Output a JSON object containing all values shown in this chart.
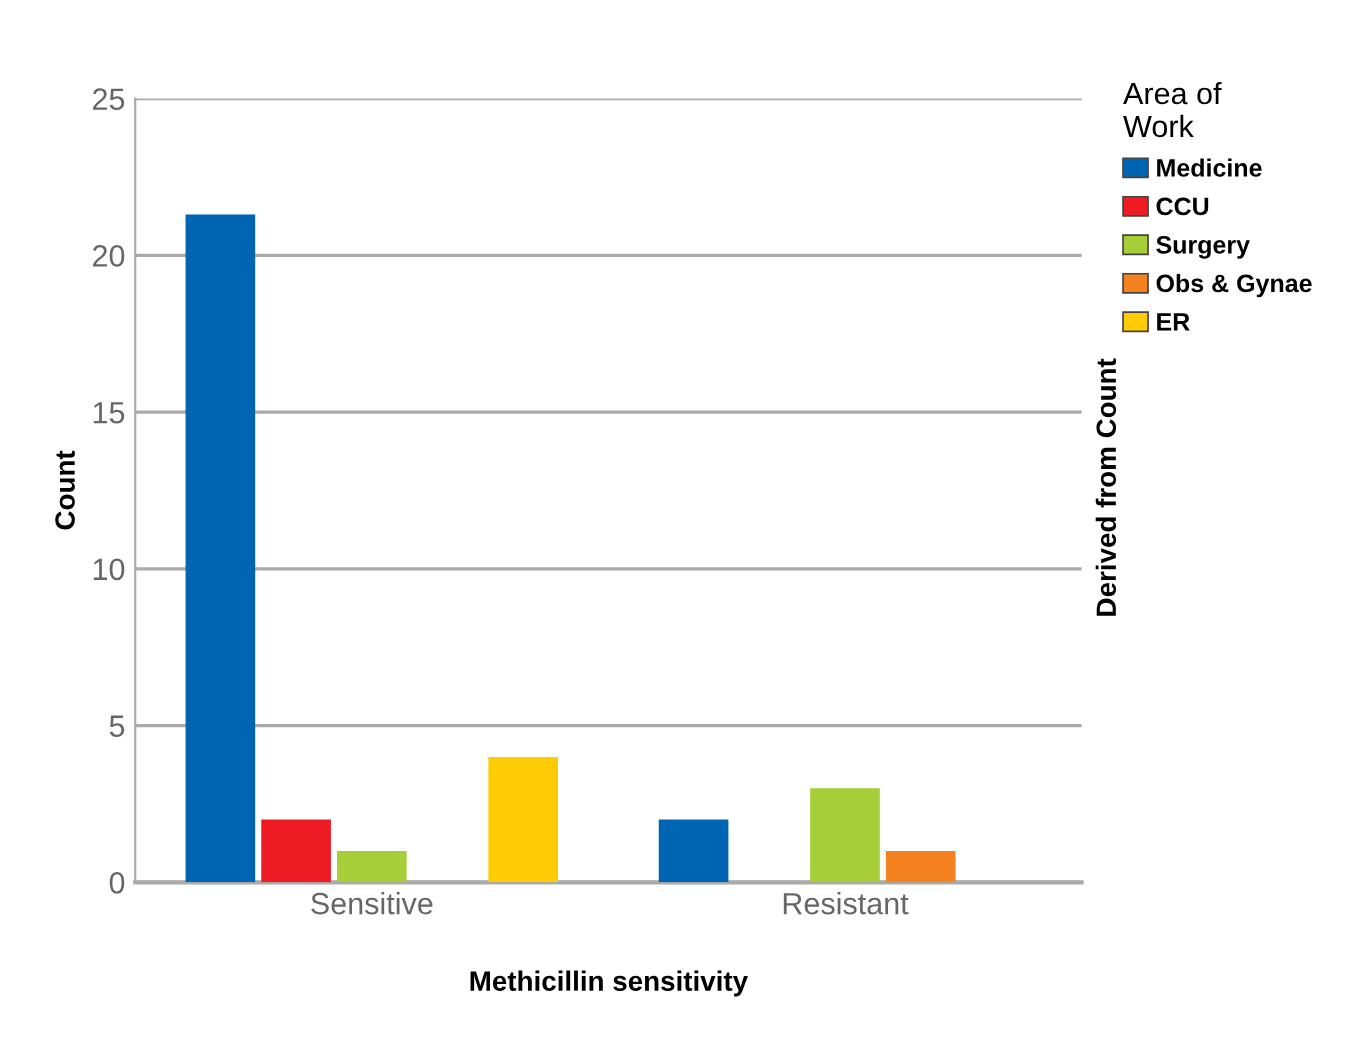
{
  "chart_data": {
    "type": "bar",
    "xlabel": "Methicillin sensitivity",
    "ylabel": "Count",
    "y2label": "Derived from Count",
    "legend_title": "Area of\nWork",
    "categories": [
      "Sensitive",
      "Resistant"
    ],
    "series": [
      {
        "name": "Medicine",
        "color": "#0066b3",
        "values": [
          21.3,
          2
        ]
      },
      {
        "name": "CCU",
        "color": "#ed1c24",
        "values": [
          2,
          null
        ]
      },
      {
        "name": "Surgery",
        "color": "#a6ce39",
        "values": [
          1,
          3
        ]
      },
      {
        "name": "Obs & Gynae",
        "color": "#f58220",
        "values": [
          null,
          1
        ]
      },
      {
        "name": "ER",
        "color": "#ffcb05",
        "values": [
          4,
          null
        ]
      }
    ],
    "ylim": [
      0,
      25
    ],
    "yticks": [
      0,
      5,
      10,
      15,
      20,
      25
    ],
    "grid": "y",
    "legend": "top right"
  }
}
